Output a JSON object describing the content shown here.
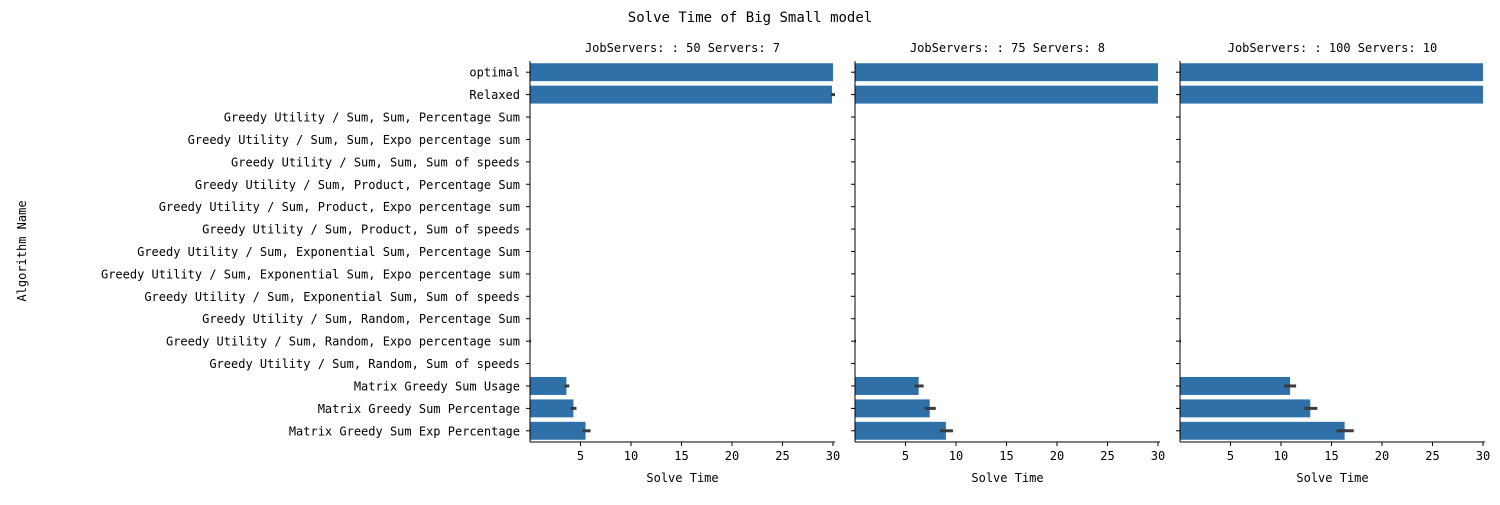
{
  "chart_data": {
    "type": "bar",
    "orientation": "horizontal",
    "title": "Solve Time of Big Small model",
    "ylabel": "Algorithm Name",
    "xlabel": "Solve Time",
    "grid": false,
    "bar_color": "#2f70a8",
    "error_color": "#3b3b3b",
    "categories": [
      "optimal",
      "Relaxed",
      "Greedy Utility / Sum, Sum, Percentage Sum",
      "Greedy Utility / Sum, Sum, Expo percentage sum",
      "Greedy Utility / Sum, Sum, Sum of speeds",
      "Greedy Utility / Sum, Product, Percentage Sum",
      "Greedy Utility / Sum, Product, Expo percentage sum",
      "Greedy Utility / Sum, Product, Sum of speeds",
      "Greedy Utility / Sum, Exponential Sum, Percentage Sum",
      "Greedy Utility / Sum, Exponential Sum, Expo percentage sum",
      "Greedy Utility / Sum, Exponential Sum, Sum of speeds",
      "Greedy Utility / Sum, Random, Percentage Sum",
      "Greedy Utility / Sum, Random, Expo percentage sum",
      "Greedy Utility / Sum, Random, Sum of speeds",
      "Matrix Greedy Sum Usage",
      "Matrix Greedy Sum Percentage",
      "Matrix Greedy Sum Exp Percentage"
    ],
    "panels": [
      {
        "title": "JobServers: : 50 Servers: 7",
        "xlim": [
          0,
          30.2
        ],
        "xticks": [
          5,
          10,
          15,
          20,
          25,
          30
        ],
        "values": [
          30,
          29.9,
          0,
          0,
          0,
          0,
          0,
          0,
          0,
          0,
          0,
          0,
          0.05,
          0,
          3.6,
          4.3,
          5.5
        ],
        "err_low": [
          30,
          29.8,
          0,
          0,
          0,
          0,
          0,
          0,
          0,
          0,
          0,
          0,
          0,
          0,
          3.4,
          4.0,
          5.2
        ],
        "err_high": [
          30,
          30.2,
          0,
          0,
          0,
          0,
          0,
          0,
          0,
          0,
          0,
          0,
          0.1,
          0,
          3.9,
          4.6,
          6.0
        ]
      },
      {
        "title": "JobServers: : 75 Servers: 8",
        "xlim": [
          0,
          30.2
        ],
        "xticks": [
          5,
          10,
          15,
          20,
          25,
          30
        ],
        "values": [
          30,
          30,
          0,
          0,
          0,
          0,
          0,
          0,
          0,
          0,
          0,
          0,
          0.05,
          0,
          6.3,
          7.4,
          9.0
        ],
        "err_low": [
          30,
          30,
          0,
          0,
          0,
          0,
          0,
          0,
          0,
          0,
          0,
          0,
          0,
          0,
          5.9,
          6.9,
          8.4
        ],
        "err_high": [
          30,
          30,
          0,
          0,
          0,
          0,
          0,
          0,
          0,
          0,
          0,
          0,
          0.1,
          0,
          6.8,
          8.0,
          9.7
        ]
      },
      {
        "title": "JobServers: : 100 Servers: 10",
        "xlim": [
          0,
          30.2
        ],
        "xticks": [
          5,
          10,
          15,
          20,
          25,
          30
        ],
        "values": [
          30,
          30,
          0,
          0,
          0,
          0,
          0,
          0,
          0,
          0,
          0,
          0,
          0.05,
          0,
          10.9,
          12.9,
          16.3
        ],
        "err_low": [
          30,
          30,
          0,
          0,
          0,
          0,
          0,
          0,
          0,
          0,
          0,
          0,
          0,
          0,
          10.3,
          12.3,
          15.5
        ],
        "err_high": [
          30,
          30,
          0,
          0,
          0,
          0,
          0,
          0,
          0,
          0,
          0,
          0,
          0.1,
          0,
          11.5,
          13.6,
          17.2
        ]
      }
    ]
  }
}
